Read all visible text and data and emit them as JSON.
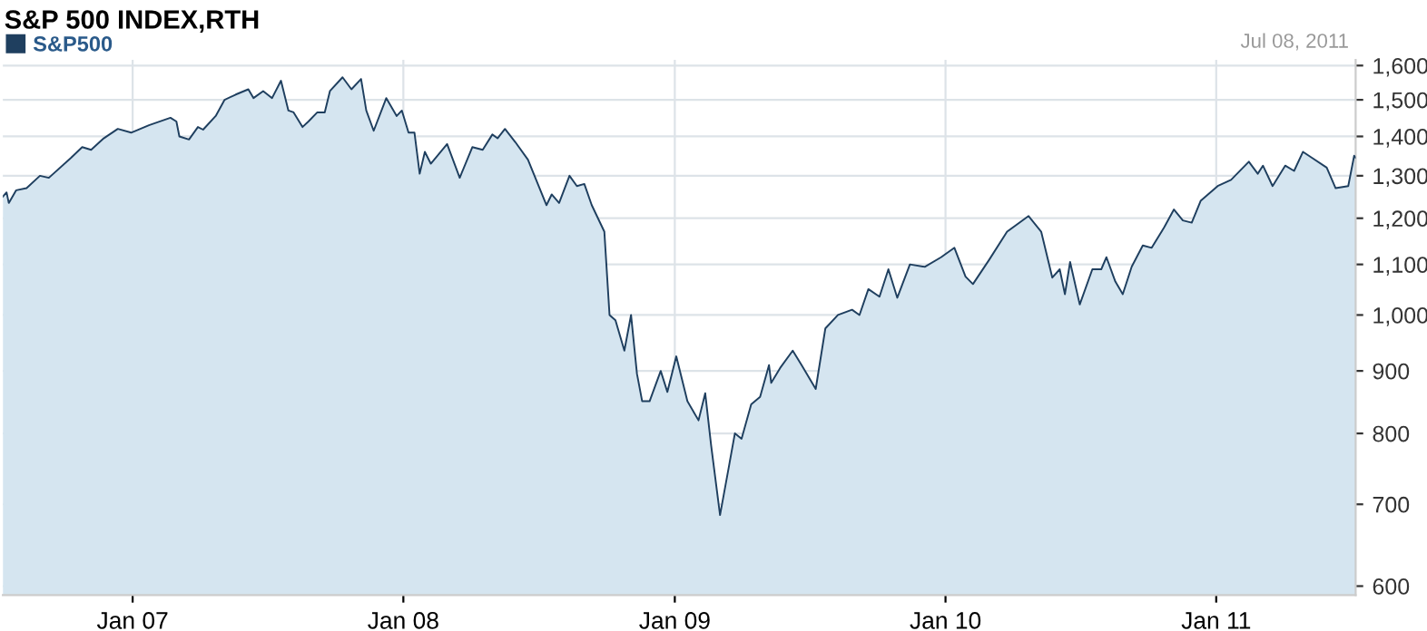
{
  "chart_data": {
    "type": "area",
    "title": "S&P 500 INDEX,RTH",
    "annotations": [
      "Jul 08, 2011"
    ],
    "legend": "top left",
    "grid": true,
    "log": "y",
    "line_style": "solid",
    "xlim": [
      "2006-07-10",
      "2011-07-08"
    ],
    "xticks": [
      {
        "value": "2007-01-01",
        "label": "Jan 07"
      },
      {
        "value": "2008-01-01",
        "label": "Jan 08"
      },
      {
        "value": "2009-01-01",
        "label": "Jan 09"
      },
      {
        "value": "2010-01-01",
        "label": "Jan 10"
      },
      {
        "value": "2011-01-01",
        "label": "Jan 11"
      }
    ],
    "ylim": [
      590,
      1617
    ],
    "yticks": [
      600,
      700,
      800,
      900,
      {
        "value": 1000,
        "label": "1,000"
      },
      {
        "value": 1100,
        "label": "1,100"
      },
      {
        "value": 1200,
        "label": "1,200"
      },
      {
        "value": 1300,
        "label": "1,300"
      },
      {
        "value": 1400,
        "label": "1,400"
      },
      {
        "value": 1500,
        "label": "1,500"
      },
      {
        "value": 1600,
        "label": "1,600"
      }
    ],
    "x": [
      "2006-07-10",
      "2006-07-15",
      "2006-07-18",
      "2006-07-28",
      "2006-08-11",
      "2006-08-29",
      "2006-09-10",
      "2006-10-10",
      "2006-10-25",
      "2006-11-06",
      "2006-11-23",
      "2006-12-12",
      "2006-12-30",
      "2007-01-23",
      "2007-02-21",
      "2007-03-01",
      "2007-03-05",
      "2007-03-18",
      "2007-03-30",
      "2007-04-06",
      "2007-04-23",
      "2007-05-05",
      "2007-05-20",
      "2007-06-06",
      "2007-06-13",
      "2007-06-26",
      "2007-07-08",
      "2007-07-20",
      "2007-07-30",
      "2007-08-06",
      "2007-08-18",
      "2007-08-26",
      "2007-09-07",
      "2007-09-17",
      "2007-09-24",
      "2007-10-11",
      "2007-10-23",
      "2007-11-05",
      "2007-11-12",
      "2007-11-22",
      "2007-12-09",
      "2007-12-23",
      "2007-12-30",
      "2008-01-08",
      "2008-01-16",
      "2008-01-23",
      "2008-01-30",
      "2008-02-07",
      "2008-02-29",
      "2008-03-17",
      "2008-04-03",
      "2008-04-17",
      "2008-04-30",
      "2008-05-07",
      "2008-05-17",
      "2008-05-31",
      "2008-06-17",
      "2008-07-12",
      "2008-07-19",
      "2008-07-29",
      "2008-08-12",
      "2008-08-22",
      "2008-09-01",
      "2008-09-11",
      "2008-09-28",
      "2008-10-05",
      "2008-10-13",
      "2008-10-25",
      "2008-11-03",
      "2008-11-11",
      "2008-11-18",
      "2008-11-28",
      "2008-12-13",
      "2008-12-22",
      "2009-01-03",
      "2009-01-18",
      "2009-02-02",
      "2009-02-11",
      "2009-02-19",
      "2009-03-03",
      "2009-03-15",
      "2009-03-23",
      "2009-04-01",
      "2009-04-14",
      "2009-04-26",
      "2009-05-08",
      "2009-05-11",
      "2009-05-23",
      "2009-06-09",
      "2009-06-21",
      "2009-07-10",
      "2009-07-23",
      "2009-08-09",
      "2009-08-28",
      "2009-09-07",
      "2009-09-19",
      "2009-10-04",
      "2009-10-16",
      "2009-10-28",
      "2009-11-14",
      "2009-12-04",
      "2009-12-26",
      "2010-01-13",
      "2010-01-28",
      "2010-02-07",
      "2010-03-01",
      "2010-03-25",
      "2010-04-23",
      "2010-05-10",
      "2010-05-25",
      "2010-06-04",
      "2010-06-11",
      "2010-06-18",
      "2010-07-01",
      "2010-07-18",
      "2010-07-30",
      "2010-08-06",
      "2010-08-18",
      "2010-08-28",
      "2010-09-09",
      "2010-09-24",
      "2010-10-06",
      "2010-10-23",
      "2010-11-05",
      "2010-11-17",
      "2010-11-29",
      "2010-12-11",
      "2011-01-03",
      "2011-01-21",
      "2011-02-14",
      "2011-02-26",
      "2011-03-05",
      "2011-03-18",
      "2011-04-04",
      "2011-04-16",
      "2011-04-28",
      "2011-05-10",
      "2011-05-30",
      "2011-06-11",
      "2011-06-28",
      "2011-07-06",
      "2011-07-08"
    ],
    "series": [
      {
        "name": "S&P500",
        "color": "#1f3f5f",
        "values": [
          1250,
          1260,
          1235,
          1265,
          1270,
          1300,
          1295,
          1345,
          1372,
          1365,
          1395,
          1420,
          1410,
          1430,
          1450,
          1440,
          1400,
          1392,
          1425,
          1418,
          1455,
          1500,
          1515,
          1530,
          1505,
          1525,
          1505,
          1555,
          1470,
          1465,
          1425,
          1440,
          1465,
          1465,
          1525,
          1565,
          1530,
          1560,
          1470,
          1415,
          1505,
          1455,
          1470,
          1410,
          1410,
          1305,
          1360,
          1330,
          1380,
          1295,
          1372,
          1365,
          1405,
          1395,
          1420,
          1385,
          1340,
          1230,
          1255,
          1235,
          1300,
          1275,
          1280,
          1230,
          1170,
          1000,
          990,
          935,
          1000,
          895,
          850,
          850,
          900,
          865,
          925,
          850,
          820,
          863,
          782,
          686,
          752,
          800,
          792,
          845,
          857,
          910,
          880,
          905,
          935,
          910,
          870,
          975,
          1000,
          1010,
          1000,
          1050,
          1035,
          1090,
          1033,
          1100,
          1095,
          1115,
          1135,
          1075,
          1060,
          1110,
          1170,
          1205,
          1170,
          1073,
          1090,
          1040,
          1105,
          1020,
          1090,
          1090,
          1115,
          1065,
          1040,
          1095,
          1140,
          1135,
          1180,
          1220,
          1195,
          1190,
          1240,
          1275,
          1290,
          1335,
          1305,
          1325,
          1275,
          1325,
          1312,
          1360,
          1345,
          1320,
          1270,
          1275,
          1350,
          1345
        ]
      }
    ]
  }
}
